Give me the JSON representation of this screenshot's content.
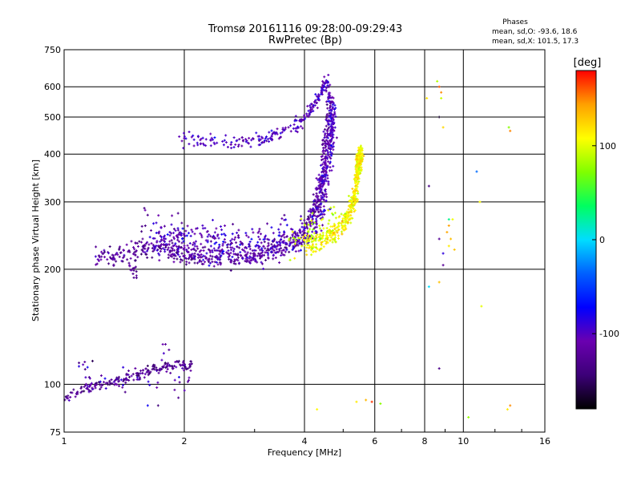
{
  "chart_data": {
    "type": "scatter",
    "title": "Tromsø 20161116 09:28:00-09:29:43",
    "subtitle": "RwPretec (Bp)",
    "xlabel": "Frequency [MHz]",
    "ylabel": "Stationary phase Virtual Height [km]",
    "x_scale": "log",
    "y_scale": "log",
    "xlim": [
      1,
      16
    ],
    "ylim": [
      75,
      750
    ],
    "x_ticks": [
      "1",
      "2",
      "4",
      "6",
      "8",
      "10",
      "16"
    ],
    "y_ticks": [
      "75",
      "100",
      "200",
      "300",
      "400",
      "500",
      "600",
      "750"
    ],
    "grid": true,
    "info": {
      "heading": "Phases",
      "line1": "mean, sd,O: -93.6, 18.6",
      "line2": "mean, sd,X: 101.5, 17.3"
    },
    "colorbar": {
      "label": "[deg]",
      "range": [
        -180,
        180
      ],
      "ticks": [
        "100",
        "0",
        "-100"
      ],
      "tick_values": [
        100,
        0,
        -100
      ],
      "colors": [
        "#000000",
        "#3c0078",
        "#6a00b0",
        "#0000ff",
        "#0060ff",
        "#00ddff",
        "#00ff60",
        "#80ff00",
        "#ffff00",
        "#ffa000",
        "#ff0000"
      ]
    },
    "series": [
      {
        "mode": "O",
        "phase_mean": -93.6,
        "segments": [
          {
            "kind": "curve",
            "f": [
              1.0,
              1.04,
              1.1,
              1.15,
              1.2,
              1.26,
              1.32,
              1.4,
              1.48,
              1.55,
              1.62,
              1.7,
              1.8,
              1.9,
              2.0,
              2.1
            ],
            "h": [
              93,
              94,
              96,
              98,
              99,
              100,
              101,
              102,
              104,
              106,
              108,
              110,
              111,
              112,
              112,
              112
            ],
            "n": 200,
            "spread": 0.015,
            "phase": -125,
            "psd": 15
          },
          {
            "kind": "curve",
            "f": [
              1.2,
              1.3,
              1.4,
              1.5,
              1.6,
              1.75,
              1.9,
              2.05,
              2.2,
              2.4,
              2.6,
              2.8,
              3.0,
              3.2,
              3.4,
              3.6,
              3.8,
              3.95,
              4.1,
              4.25,
              4.35,
              4.45,
              4.55,
              4.62
            ],
            "h": [
              218,
              216,
              218,
              224,
              228,
              226,
              222,
              218,
              216,
              214,
              214,
              215,
              217,
              221,
              226,
              232,
              240,
              248,
              262,
              285,
              320,
              380,
              470,
              560
            ],
            "n": 560,
            "spread": 0.03,
            "phase": -120,
            "psd": 14
          },
          {
            "kind": "curve",
            "f": [
              1.7,
              1.8,
              1.95,
              2.1,
              2.3,
              2.5,
              2.75,
              3.0,
              3.25,
              3.5,
              3.75,
              4.0,
              4.2,
              4.35,
              4.45,
              4.52
            ],
            "h": [
              248,
              242,
              238,
              235,
              232,
              230,
              230,
              231,
              234,
              238,
              244,
              252,
              262,
              278,
              300,
              330
            ],
            "n": 480,
            "spread": 0.06,
            "phase": -103,
            "psd": 14
          },
          {
            "kind": "curve",
            "f": [
              1.95,
              2.1,
              2.3,
              2.5,
              2.7,
              2.9,
              3.1,
              3.3,
              3.5,
              3.7,
              3.9,
              4.1,
              4.25,
              4.35,
              4.45,
              4.55,
              4.6,
              4.65,
              4.7
            ],
            "h": [
              440,
              436,
              432,
              430,
              430,
              432,
              436,
              442,
              452,
              466,
              484,
              510,
              540,
              570,
              600,
              620,
              580,
              530,
              460
            ],
            "n": 260,
            "spread": 0.02,
            "phase": -100,
            "psd": 12
          },
          {
            "kind": "curve",
            "f": [
              4.4,
              4.5,
              4.6,
              4.65,
              4.7,
              4.72,
              4.75
            ],
            "h": [
              320,
              360,
              400,
              440,
              480,
              500,
              540
            ],
            "n": 180,
            "spread": 0.04,
            "phase": -100,
            "psd": 10
          },
          {
            "kind": "curve",
            "f": [
              1.1,
              1.15,
              1.25,
              1.3,
              1.35,
              1.4,
              1.45,
              1.5,
              1.6,
              1.7,
              1.75,
              1.82,
              1.9,
              2.05,
              2.1
            ],
            "h": [
              112,
              113,
              104,
              102,
              101,
              103,
              106,
              110,
              95,
              96,
              124,
              118,
              100,
              104,
              109
            ],
            "n": 45,
            "spread": 0.04,
            "phase": -110,
            "psd": 20
          },
          {
            "kind": "curve",
            "f": [
              1.45,
              1.48,
              1.5,
              1.52,
              1.55,
              1.58,
              1.62
            ],
            "h": [
              208,
              200,
              195,
              214,
              226,
              270,
              285
            ],
            "n": 25,
            "spread": 0.03,
            "phase": -125,
            "psd": 12
          }
        ]
      },
      {
        "mode": "X",
        "phase_mean": 101.5,
        "segments": [
          {
            "kind": "curve",
            "f": [
              4.0,
              4.2,
              4.4,
              4.6,
              4.8,
              5.0,
              5.1,
              5.2,
              5.3,
              5.35,
              5.4,
              5.45,
              5.5,
              5.52,
              5.5,
              5.45,
              5.4
            ],
            "h": [
              232,
              234,
              238,
              244,
              252,
              262,
              272,
              284,
              300,
              320,
              345,
              370,
              390,
              405,
              385,
              370,
              355
            ],
            "n": 480,
            "spread": 0.03,
            "phase": 110,
            "psd": 14
          },
          {
            "kind": "curve",
            "f": [
              3.6,
              3.8,
              4.0,
              4.2,
              4.5,
              4.8
            ],
            "h": [
              232,
              238,
              246,
              255,
              268,
              280
            ],
            "n": 50,
            "spread": 0.05,
            "phase": 95,
            "psd": 15
          },
          {
            "kind": "points",
            "f": [
              8.6,
              8.7,
              8.8,
              8.8,
              8.9,
              9.2,
              9.3,
              8.7,
              13.0,
              13.1,
              9.5,
              11.0,
              13.1,
              4.3,
              5.4,
              5.7,
              5.9,
              6.2,
              10.3,
              12.9,
              11.1,
              9.2,
              9.1,
              9.4,
              8.1
            ],
            "h": [
              620,
              600,
              580,
              560,
              470,
              260,
              240,
              185,
              470,
              460,
              225,
              300,
              88,
              86,
              90,
              91,
              90,
              89,
              82,
              86,
              160,
              230,
              250,
              270,
              560
            ],
            "n": 25,
            "spread": 0.0,
            "phase": 120,
            "psd": 30
          },
          {
            "kind": "points",
            "f": [
              8.7,
              8.9,
              8.2,
              9.2,
              8.2,
              10.8,
              8.7,
              8.7,
              8.9,
              1.72,
              1.62
            ],
            "h": [
              500,
              220,
              330,
              270,
              180,
              360,
              110,
              240,
              205,
              88,
              88
            ],
            "n": 11,
            "spread": 0.0,
            "phase": -100,
            "psd": 60
          }
        ]
      }
    ]
  }
}
